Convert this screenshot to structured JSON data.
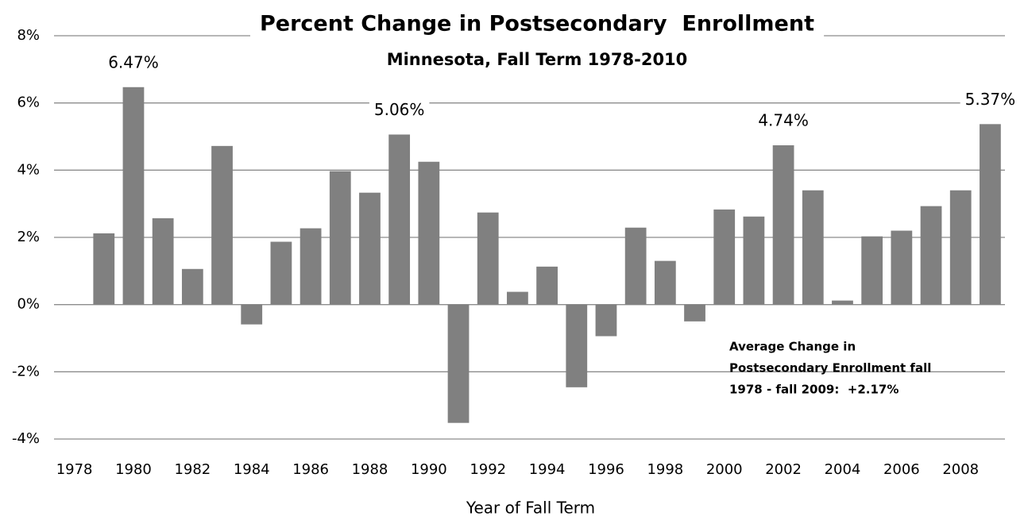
{
  "chart_data": {
    "type": "bar",
    "title": "Percent Change in Postsecondary  Enrollment",
    "subtitle": "Minnesota, Fall Term 1978-2010",
    "x_label": "Year of Fall Term",
    "annotation": [
      "Average Change in",
      "Postsecondary Enrollment fall",
      "1978 - fall 2009:  +2.17%"
    ],
    "categories": [
      "1978",
      null,
      "1980",
      null,
      "1982",
      null,
      "1984",
      null,
      "1986",
      null,
      "1988",
      null,
      "1990",
      null,
      "1992",
      null,
      "1994",
      null,
      "1996",
      null,
      "1998",
      null,
      "2000",
      null,
      "2002",
      null,
      "2004",
      null,
      "2006",
      null,
      "2008",
      null
    ],
    "values": [
      null,
      2.12,
      6.47,
      2.57,
      1.06,
      4.72,
      -0.59,
      1.87,
      2.27,
      3.97,
      3.33,
      5.06,
      4.25,
      -3.52,
      2.74,
      0.38,
      1.13,
      -2.46,
      -0.94,
      2.29,
      1.3,
      -0.5,
      2.83,
      2.62,
      4.74,
      3.4,
      0.12,
      2.03,
      2.2,
      2.93,
      3.4,
      5.37
    ],
    "value_labels": [
      null,
      null,
      "6.47%",
      null,
      null,
      null,
      null,
      null,
      null,
      null,
      null,
      "5.06%",
      null,
      null,
      null,
      null,
      null,
      null,
      null,
      null,
      null,
      null,
      null,
      null,
      "4.74%",
      null,
      null,
      null,
      null,
      null,
      null,
      "5.37%"
    ],
    "color": "#808080",
    "ylim": [
      -4,
      8
    ],
    "yticks": [
      {
        "value": -4,
        "label": "-4%"
      },
      {
        "value": -2,
        "label": "-2%"
      },
      {
        "value": 0,
        "label": "0%"
      },
      {
        "value": 2,
        "label": "2%"
      },
      {
        "value": 4,
        "label": "4%"
      },
      {
        "value": 6,
        "label": "6%"
      },
      {
        "value": 8,
        "label": "8%"
      }
    ],
    "grid": true
  }
}
